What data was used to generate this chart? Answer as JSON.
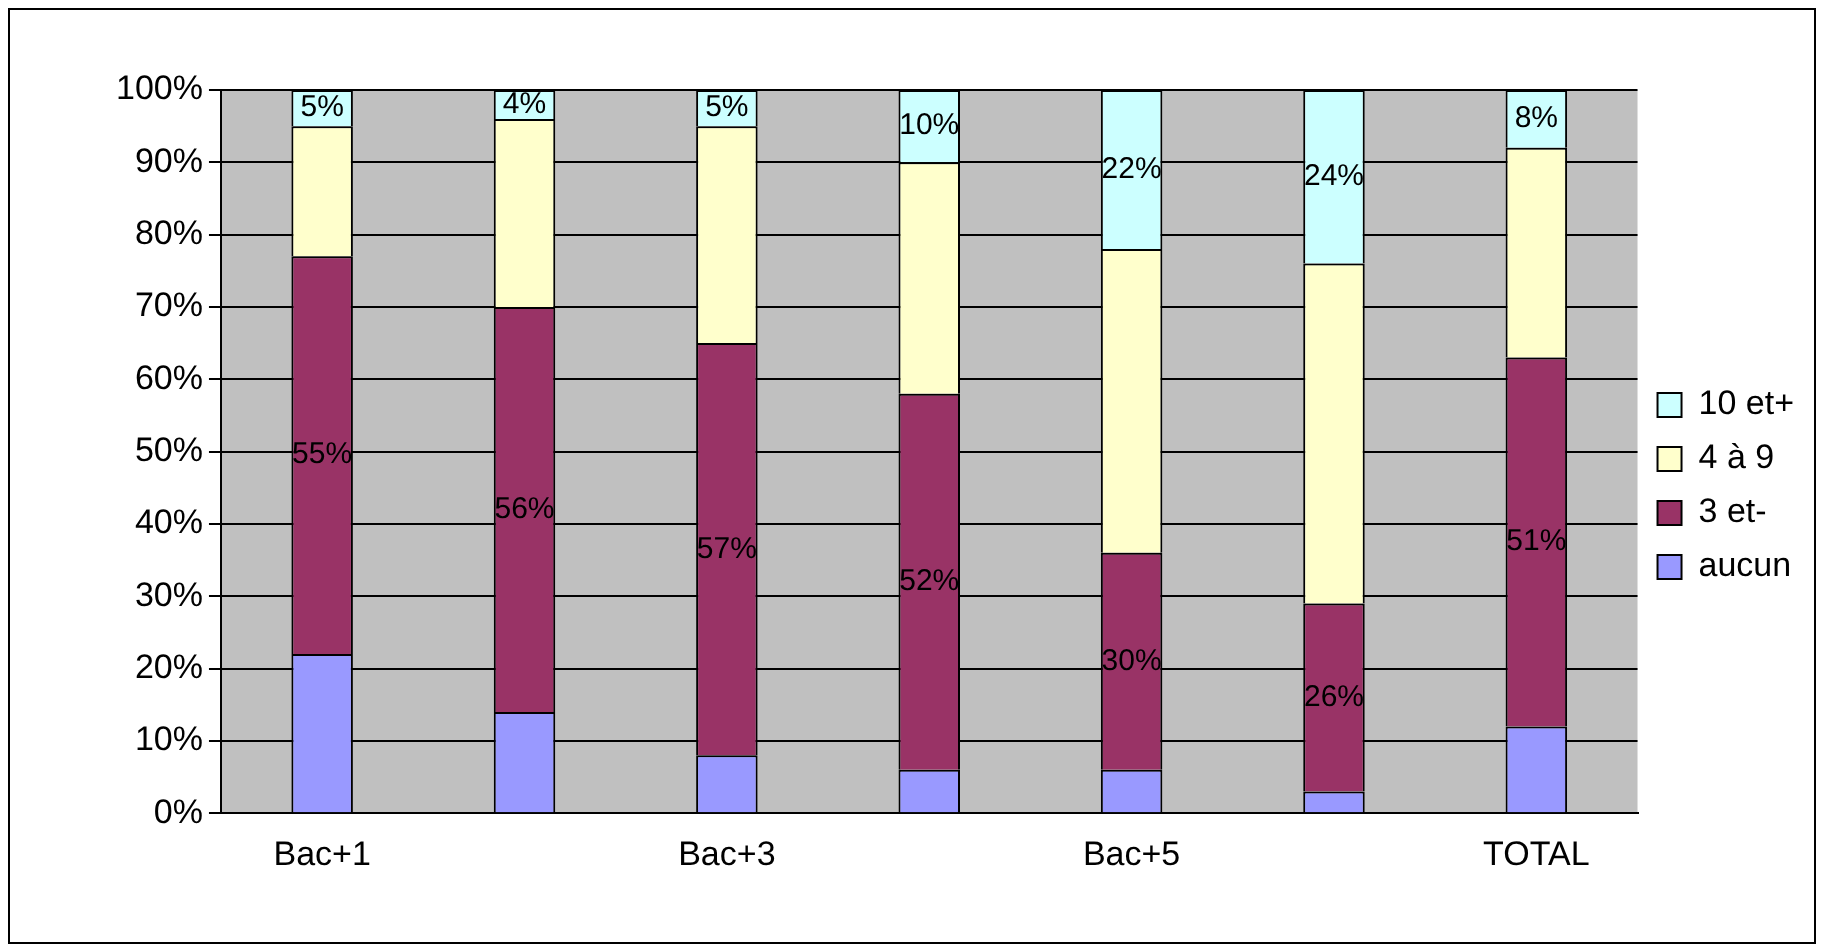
{
  "chart_data": {
    "type": "bar",
    "stacked": true,
    "categories": [
      "Bac+1",
      null,
      "Bac+3",
      null,
      "Bac+5",
      null,
      "TOTAL"
    ],
    "series": [
      {
        "name": "aucun",
        "color": "#9999ff",
        "values": [
          22,
          14,
          8,
          6,
          6,
          3,
          12
        ]
      },
      {
        "name": "3 et-",
        "color": "#993366",
        "values": [
          55,
          56,
          57,
          52,
          30,
          26,
          51
        ],
        "value_labels": [
          "55%",
          "56%",
          "57%",
          "52%",
          "30%",
          "26%",
          "51%"
        ]
      },
      {
        "name": "4 à 9",
        "color": "#ffffcc",
        "values": [
          18,
          26,
          30,
          32,
          42,
          47,
          29
        ]
      },
      {
        "name": "10 et+",
        "color": "#ccffff",
        "values": [
          5,
          4,
          5,
          10,
          22,
          24,
          8
        ],
        "value_labels": [
          "5%",
          "4%",
          "5%",
          "10%",
          "22%",
          "24%",
          "8%"
        ]
      }
    ],
    "ylim": [
      0,
      100
    ],
    "yticks": [
      {
        "value": 0,
        "label": "0%"
      },
      {
        "value": 10,
        "label": "10%"
      },
      {
        "value": 20,
        "label": "20%"
      },
      {
        "value": 30,
        "label": "30%"
      },
      {
        "value": 40,
        "label": "40%"
      },
      {
        "value": 50,
        "label": "50%"
      },
      {
        "value": 60,
        "label": "60%"
      },
      {
        "value": 70,
        "label": "70%"
      },
      {
        "value": 80,
        "label": "80%"
      },
      {
        "value": 90,
        "label": "90%"
      },
      {
        "value": 100,
        "label": "100%"
      }
    ],
    "grid": "y",
    "legend": "right"
  }
}
